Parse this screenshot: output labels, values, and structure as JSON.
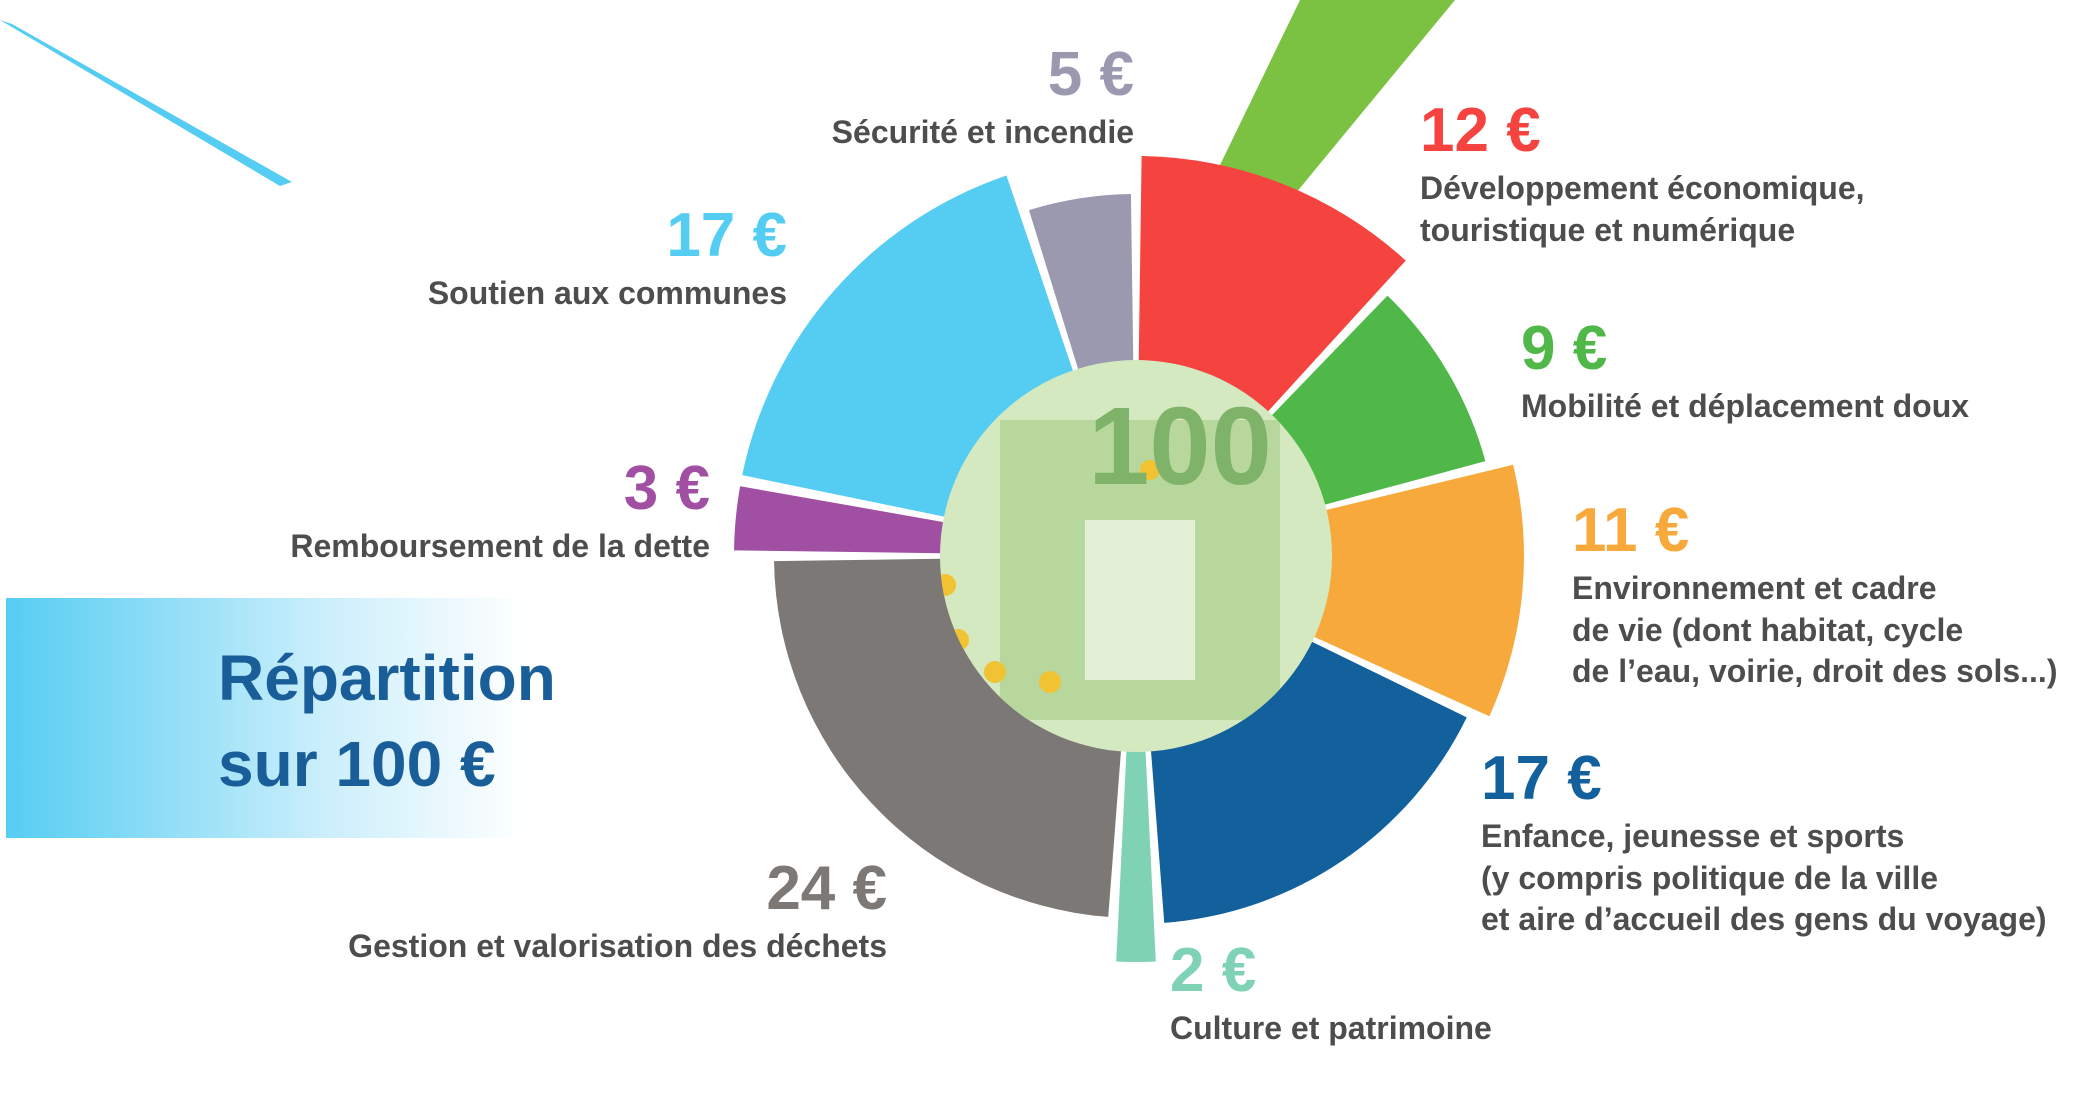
{
  "chart_data": {
    "type": "pie",
    "title": "Répartition sur 100 €",
    "center_label": "100",
    "categories": [
      "Développement économique,\ntouristique et numérique",
      "Mobilité et déplacement doux",
      "Environnement et cadre\nde vie (dont habitat, cycle\nde l’eau, voirie, droit des sols...)",
      "Enfance, jeunesse et sports\n(y compris politique de la ville\net aire d’accueil des gens du voyage)",
      "Culture et patrimoine",
      "Gestion et valorisation des déchets",
      "Remboursement de la dette",
      "Soutien aux communes",
      "Sécurité et incendie"
    ],
    "values": [
      12,
      9,
      11,
      17,
      2,
      24,
      3,
      17,
      5
    ],
    "value_labels": [
      "12 €",
      "9 €",
      "11 €",
      "17 €",
      "2 €",
      "24 €",
      "3 €",
      "17 €",
      "5 €"
    ],
    "colors": [
      "#f5443f",
      "#4fb848",
      "#f7a93b",
      "#12609c",
      "#7fd3b4",
      "#7b7875",
      "#a04fa3",
      "#55cdf2",
      "#9b99b0"
    ]
  }
}
